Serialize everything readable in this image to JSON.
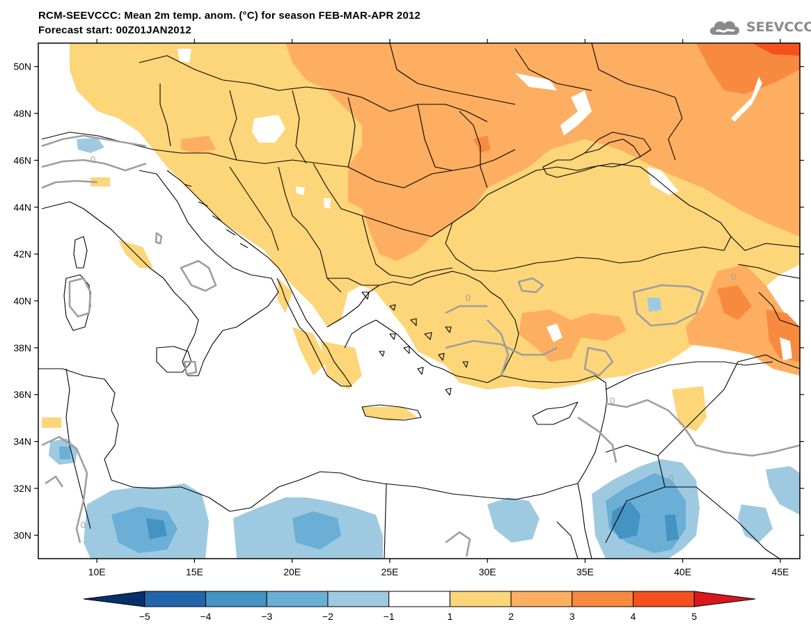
{
  "header": {
    "title_line1": "RCM-SEEVCCC: Mean 2m temp. anom. (°C) for season FEB-MAR-APR 2012",
    "title_line2": "Forecast start: 00Z01JAN2012"
  },
  "logo": {
    "text": "SEEVCCC",
    "icon": "cloud-logo-icon"
  },
  "map": {
    "lon_range": [
      7,
      46
    ],
    "lat_range": [
      29,
      51
    ],
    "lat_ticks": [
      {
        "value": 30,
        "label": "30N"
      },
      {
        "value": 32,
        "label": "32N"
      },
      {
        "value": 34,
        "label": "34N"
      },
      {
        "value": 36,
        "label": "36N"
      },
      {
        "value": 38,
        "label": "38N"
      },
      {
        "value": 40,
        "label": "40N"
      },
      {
        "value": 42,
        "label": "42N"
      },
      {
        "value": 44,
        "label": "44N"
      },
      {
        "value": 46,
        "label": "46N"
      },
      {
        "value": 48,
        "label": "48N"
      },
      {
        "value": 50,
        "label": "50N"
      }
    ],
    "lon_ticks": [
      {
        "value": 10,
        "label": "10E"
      },
      {
        "value": 15,
        "label": "15E"
      },
      {
        "value": 20,
        "label": "20E"
      },
      {
        "value": 25,
        "label": "25E"
      },
      {
        "value": 30,
        "label": "30E"
      },
      {
        "value": 35,
        "label": "35E"
      },
      {
        "value": 40,
        "label": "40E"
      },
      {
        "value": 45,
        "label": "45E"
      }
    ],
    "contour_labels": [
      {
        "text": "0",
        "lon": 9.8,
        "lat": 45.9
      },
      {
        "text": "0",
        "lon": 29.0,
        "lat": 40.0
      },
      {
        "text": "0",
        "lon": 39.4,
        "lat": 32.3
      },
      {
        "text": "0",
        "lon": 9.3,
        "lat": 30.3
      },
      {
        "text": "0",
        "lon": 42.6,
        "lat": 40.9
      },
      {
        "text": "0",
        "lon": 36.4,
        "lat": 35.6
      }
    ]
  },
  "colorbar": {
    "labels": [
      "−5",
      "−4",
      "−3",
      "−2",
      "−1",
      "1",
      "2",
      "3",
      "4",
      "5"
    ],
    "colors": [
      "#08306b",
      "#2166ac",
      "#4393c3",
      "#6baed6",
      "#9ecae1",
      "#ffffff",
      "#fdd67a",
      "#fdae61",
      "#f88a3f",
      "#f4511e",
      "#d7191c"
    ]
  }
}
